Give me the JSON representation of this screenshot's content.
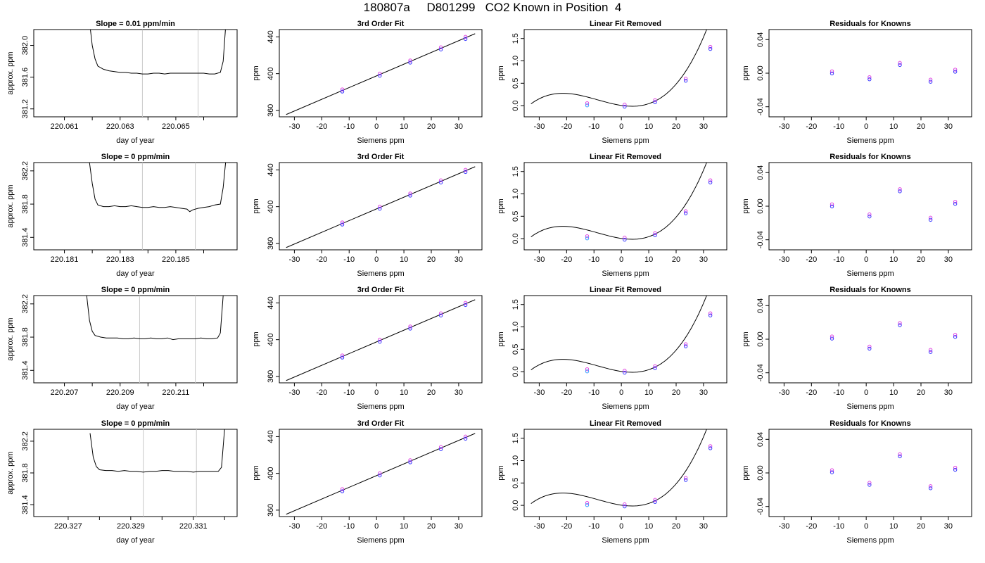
{
  "main_title": "180807a     D801299   CO2 Known in Position  4",
  "chart_data": [
    {
      "type": "line",
      "panel": "timeseries",
      "row": 0,
      "title": "Slope =  0.01  ppm/min",
      "xlabel": "day of year",
      "ylabel": "approx. ppm",
      "xlim": [
        220.0599,
        220.0672
      ],
      "ylim": [
        381.1,
        382.2
      ],
      "xticks": [
        "220.061",
        "220.063",
        "220.065"
      ],
      "minor_xticks": [
        220.062,
        220.064,
        220.066
      ],
      "yticks": [
        "381.2",
        "381.6",
        "382.0"
      ],
      "vlines": [
        220.0638,
        220.0658
      ],
      "x": [
        220.0619,
        220.062,
        220.0621,
        220.0622,
        220.0624,
        220.0626,
        220.0628,
        220.063,
        220.0632,
        220.0634,
        220.0636,
        220.0638,
        220.064,
        220.0642,
        220.0644,
        220.0646,
        220.0648,
        220.065,
        220.0652,
        220.0654,
        220.0656,
        220.0658,
        220.066,
        220.0662,
        220.0664,
        220.0666,
        220.0667,
        220.0668
      ],
      "y": [
        382.3,
        382.0,
        381.83,
        381.74,
        381.7,
        381.68,
        381.67,
        381.66,
        381.66,
        381.65,
        381.65,
        381.64,
        381.64,
        381.65,
        381.65,
        381.64,
        381.65,
        381.65,
        381.65,
        381.65,
        381.65,
        381.65,
        381.65,
        381.64,
        381.64,
        381.66,
        381.8,
        382.3
      ]
    },
    {
      "type": "scatter",
      "panel": "fit",
      "row": 0,
      "title": "3rd Order Fit",
      "xlabel": "Siemens ppm",
      "ylabel": "ppm",
      "xlim": [
        -35.5,
        38.5
      ],
      "ylim": [
        353,
        448
      ],
      "xticks": [
        "-30",
        "-20",
        "-10",
        "0",
        "10",
        "20",
        "30"
      ],
      "yticks": [
        "360",
        "400",
        "440"
      ],
      "x": [
        -12.5,
        1.2,
        12.3,
        23.5,
        32.5
      ],
      "y": [
        381.7,
        398.9,
        413.2,
        427.5,
        438.9
      ],
      "fit_line": [
        [
          -33,
          355.5
        ],
        [
          36,
          443.5
        ]
      ]
    },
    {
      "type": "scatter",
      "panel": "removed",
      "row": 0,
      "title": "Linear Fit Removed",
      "xlabel": "Siemens ppm",
      "ylabel": "ppm",
      "xlim": [
        -35.5,
        38.5
      ],
      "ylim": [
        -0.25,
        1.7
      ],
      "xticks": [
        "-30",
        "-20",
        "-10",
        "0",
        "10",
        "20",
        "30"
      ],
      "yticks": [
        "0.0",
        "0.5",
        "1.0",
        "1.5"
      ],
      "x": [
        -12.5,
        1.2,
        12.3,
        23.5,
        32.5
      ],
      "y": [
        0.03,
        0.0,
        0.1,
        0.58,
        1.29
      ],
      "curve": {
        "a": 3.55e-05,
        "b": 0.00093,
        "c": -0.009,
        "d": 0.005,
        "x_from": -33,
        "x_to": 36
      }
    },
    {
      "type": "scatter",
      "panel": "residuals",
      "row": 0,
      "title": "Residuals for Knowns",
      "xlabel": "Siemens ppm",
      "ylabel": "ppm",
      "xlim": [
        -35.5,
        38.5
      ],
      "ylim": [
        -0.052,
        0.052
      ],
      "xticks": [
        "-30",
        "-20",
        "-10",
        "0",
        "10",
        "20",
        "30"
      ],
      "yticks": [
        "-0.04",
        "0.00",
        "0.04"
      ],
      "x": [
        -12.5,
        1.2,
        12.3,
        23.5,
        32.5
      ],
      "y": [
        0.001,
        -0.006,
        0.011,
        -0.009,
        0.003
      ]
    },
    {
      "type": "line",
      "panel": "timeseries",
      "row": 1,
      "title": "Slope =  0  ppm/min",
      "xlabel": "day of year",
      "ylabel": "approx. ppm",
      "xlim": [
        220.1799,
        220.1872
      ],
      "ylim": [
        381.25,
        382.3
      ],
      "xticks": [
        "220.181",
        "220.183",
        "220.185"
      ],
      "minor_xticks": [
        220.182,
        220.184,
        220.186
      ],
      "yticks": [
        "381.4",
        "381.8",
        "382.2"
      ],
      "vlines": [
        220.1838,
        220.1857
      ],
      "x": [
        220.1819,
        220.182,
        220.1821,
        220.1822,
        220.1824,
        220.1826,
        220.1828,
        220.183,
        220.1832,
        220.1834,
        220.1836,
        220.1838,
        220.184,
        220.1842,
        220.1844,
        220.1846,
        220.1848,
        220.185,
        220.1852,
        220.1854,
        220.1855,
        220.1856,
        220.1858,
        220.186,
        220.1862,
        220.1864,
        220.1866,
        220.1867,
        220.1868
      ],
      "y": [
        382.3,
        382.05,
        381.86,
        381.79,
        381.77,
        381.77,
        381.78,
        381.77,
        381.77,
        381.78,
        381.77,
        381.76,
        381.76,
        381.77,
        381.76,
        381.76,
        381.77,
        381.76,
        381.75,
        381.74,
        381.71,
        381.73,
        381.75,
        381.76,
        381.77,
        381.79,
        381.8,
        382.0,
        382.35
      ]
    },
    {
      "type": "scatter",
      "panel": "fit",
      "row": 1,
      "title": "3rd Order Fit",
      "xlabel": "Siemens ppm",
      "ylabel": "ppm",
      "xlim": [
        -35.5,
        38.5
      ],
      "ylim": [
        353,
        448
      ],
      "xticks": [
        "-30",
        "-20",
        "-10",
        "0",
        "10",
        "20",
        "30"
      ],
      "yticks": [
        "360",
        "400",
        "440"
      ],
      "x": [
        -12.5,
        1.2,
        12.3,
        23.5,
        32.5
      ],
      "y": [
        381.7,
        398.9,
        413.2,
        427.5,
        438.9
      ],
      "fit_line": [
        [
          -33,
          355.5
        ],
        [
          36,
          443.5
        ]
      ]
    },
    {
      "type": "scatter",
      "panel": "removed",
      "row": 1,
      "title": "Linear Fit Removed",
      "xlabel": "Siemens ppm",
      "ylabel": "ppm",
      "xlim": [
        -35.5,
        38.5
      ],
      "ylim": [
        -0.25,
        1.7
      ],
      "xticks": [
        "-30",
        "-20",
        "-10",
        "0",
        "10",
        "20",
        "30"
      ],
      "yticks": [
        "0.0",
        "0.5",
        "1.0",
        "1.5"
      ],
      "x": [
        -12.5,
        1.2,
        12.3,
        23.5,
        32.5
      ],
      "y": [
        0.03,
        0.0,
        0.1,
        0.59,
        1.28
      ],
      "curve": {
        "a": 3.55e-05,
        "b": 0.00093,
        "c": -0.009,
        "d": 0.005,
        "x_from": -33,
        "x_to": 36
      }
    },
    {
      "type": "scatter",
      "panel": "residuals",
      "row": 1,
      "title": "Residuals for Knowns",
      "xlabel": "Siemens ppm",
      "ylabel": "ppm",
      "xlim": [
        -35.5,
        38.5
      ],
      "ylim": [
        -0.052,
        0.052
      ],
      "xticks": [
        "-30",
        "-20",
        "-10",
        "0",
        "10",
        "20",
        "30"
      ],
      "yticks": [
        "-0.04",
        "0.00",
        "0.04"
      ],
      "x": [
        -12.5,
        1.2,
        12.3,
        23.5,
        32.5
      ],
      "y": [
        0.001,
        -0.011,
        0.019,
        -0.015,
        0.004
      ]
    },
    {
      "type": "line",
      "panel": "timeseries",
      "row": 2,
      "title": "Slope =  0  ppm/min",
      "xlabel": "day of year",
      "ylabel": "approx. ppm",
      "xlim": [
        220.2059,
        220.2132
      ],
      "ylim": [
        381.25,
        382.3
      ],
      "xticks": [
        "220.207",
        "220.209",
        "220.211"
      ],
      "minor_xticks": [
        220.208,
        220.21,
        220.212
      ],
      "yticks": [
        "381.4",
        "381.8",
        "382.2"
      ],
      "vlines": [
        220.2097,
        220.2117
      ],
      "x": [
        220.2078,
        220.2079,
        220.208,
        220.2081,
        220.2083,
        220.2085,
        220.2087,
        220.2089,
        220.2091,
        220.2093,
        220.2095,
        220.2097,
        220.2099,
        220.2101,
        220.2103,
        220.2105,
        220.2107,
        220.2109,
        220.2111,
        220.2113,
        220.2115,
        220.2117,
        220.2119,
        220.2121,
        220.2123,
        220.2125,
        220.2126,
        220.2127
      ],
      "y": [
        382.3,
        382.0,
        381.87,
        381.82,
        381.8,
        381.79,
        381.79,
        381.79,
        381.78,
        381.78,
        381.79,
        381.78,
        381.78,
        381.79,
        381.78,
        381.78,
        381.79,
        381.77,
        381.78,
        381.78,
        381.78,
        381.78,
        381.79,
        381.78,
        381.78,
        381.79,
        381.85,
        382.3
      ]
    },
    {
      "type": "scatter",
      "panel": "fit",
      "row": 2,
      "title": "3rd Order Fit",
      "xlabel": "Siemens ppm",
      "ylabel": "ppm",
      "xlim": [
        -35.5,
        38.5
      ],
      "ylim": [
        353,
        448
      ],
      "xticks": [
        "-30",
        "-20",
        "-10",
        "0",
        "10",
        "20",
        "30"
      ],
      "yticks": [
        "360",
        "400",
        "440"
      ],
      "x": [
        -12.5,
        1.2,
        12.3,
        23.5,
        32.5
      ],
      "y": [
        381.7,
        398.9,
        413.2,
        427.5,
        438.9
      ],
      "fit_line": [
        [
          -33,
          355.5
        ],
        [
          36,
          443.5
        ]
      ]
    },
    {
      "type": "scatter",
      "panel": "removed",
      "row": 2,
      "title": "Linear Fit Removed",
      "xlabel": "Siemens ppm",
      "ylabel": "ppm",
      "xlim": [
        -35.5,
        38.5
      ],
      "ylim": [
        -0.25,
        1.7
      ],
      "xticks": [
        "-30",
        "-20",
        "-10",
        "0",
        "10",
        "20",
        "30"
      ],
      "yticks": [
        "0.0",
        "0.5",
        "1.0",
        "1.5"
      ],
      "x": [
        -12.5,
        1.2,
        12.3,
        23.5,
        32.5
      ],
      "y": [
        0.03,
        0.0,
        0.1,
        0.59,
        1.28
      ],
      "curve": {
        "a": 3.55e-05,
        "b": 0.00093,
        "c": -0.009,
        "d": 0.005,
        "x_from": -33,
        "x_to": 36
      }
    },
    {
      "type": "scatter",
      "panel": "residuals",
      "row": 2,
      "title": "Residuals for Knowns",
      "xlabel": "Siemens ppm",
      "ylabel": "ppm",
      "xlim": [
        -35.5,
        38.5
      ],
      "ylim": [
        -0.052,
        0.052
      ],
      "xticks": [
        "-30",
        "-20",
        "-10",
        "0",
        "10",
        "20",
        "30"
      ],
      "yticks": [
        "-0.04",
        "0.00",
        "0.04"
      ],
      "x": [
        -12.5,
        1.2,
        12.3,
        23.5,
        32.5
      ],
      "y": [
        0.002,
        -0.01,
        0.018,
        -0.014,
        0.004
      ]
    },
    {
      "type": "line",
      "panel": "timeseries",
      "row": 3,
      "title": "Slope =  0  ppm/min",
      "xlabel": "day of year",
      "ylabel": "approx. ppm",
      "xlim": [
        220.3259,
        220.3324
      ],
      "ylim": [
        381.25,
        382.35
      ],
      "xticks": [
        "220.327",
        "220.329",
        "220.331"
      ],
      "minor_xticks": [
        220.328,
        220.33,
        220.332
      ],
      "yticks": [
        "381.4",
        "381.8",
        "382.2"
      ],
      "vlines": [
        220.3294,
        220.3311
      ],
      "x": [
        220.3277,
        220.3278,
        220.3279,
        220.328,
        220.3282,
        220.3284,
        220.3286,
        220.3288,
        220.329,
        220.3292,
        220.3294,
        220.3296,
        220.3298,
        220.33,
        220.3302,
        220.3304,
        220.3306,
        220.3308,
        220.331,
        220.3312,
        220.3314,
        220.3316,
        220.3318,
        220.3319,
        220.332
      ],
      "y": [
        382.3,
        382.0,
        381.88,
        381.84,
        381.83,
        381.83,
        381.82,
        381.83,
        381.82,
        381.82,
        381.81,
        381.82,
        381.82,
        381.83,
        381.83,
        381.82,
        381.82,
        381.82,
        381.81,
        381.82,
        381.82,
        381.82,
        381.82,
        381.87,
        382.35
      ]
    },
    {
      "type": "scatter",
      "panel": "fit",
      "row": 3,
      "title": "3rd Order Fit",
      "xlabel": "Siemens ppm",
      "ylabel": "ppm",
      "xlim": [
        -35.5,
        38.5
      ],
      "ylim": [
        353,
        448
      ],
      "xticks": [
        "-30",
        "-20",
        "-10",
        "0",
        "10",
        "20",
        "30"
      ],
      "yticks": [
        "360",
        "400",
        "440"
      ],
      "x": [
        -12.5,
        1.2,
        12.3,
        23.5,
        32.5
      ],
      "y": [
        381.7,
        398.9,
        413.2,
        427.5,
        438.9
      ],
      "fit_line": [
        [
          -33,
          355.5
        ],
        [
          36,
          443.5
        ]
      ]
    },
    {
      "type": "scatter",
      "panel": "removed",
      "row": 3,
      "title": "Linear Fit Removed",
      "xlabel": "Siemens ppm",
      "ylabel": "ppm",
      "xlim": [
        -35.5,
        38.5
      ],
      "ylim": [
        -0.25,
        1.7
      ],
      "xticks": [
        "-30",
        "-20",
        "-10",
        "0",
        "10",
        "20",
        "30"
      ],
      "yticks": [
        "0.0",
        "0.5",
        "1.0",
        "1.5"
      ],
      "x": [
        -12.5,
        1.2,
        12.3,
        23.5,
        32.5
      ],
      "y": [
        0.03,
        0.0,
        0.1,
        0.59,
        1.3
      ],
      "curve": {
        "a": 3.55e-05,
        "b": 0.00093,
        "c": -0.009,
        "d": 0.005,
        "x_from": -33,
        "x_to": 36
      }
    },
    {
      "type": "scatter",
      "panel": "residuals",
      "row": 3,
      "title": "Residuals for Knowns",
      "xlabel": "Siemens ppm",
      "ylabel": "ppm",
      "xlim": [
        -35.5,
        38.5
      ],
      "ylim": [
        -0.052,
        0.052
      ],
      "xticks": [
        "-30",
        "-20",
        "-10",
        "0",
        "10",
        "20",
        "30"
      ],
      "yticks": [
        "-0.04",
        "0.00",
        "0.04"
      ],
      "x": [
        -12.5,
        1.2,
        12.3,
        23.5,
        32.5
      ],
      "y": [
        0.002,
        -0.013,
        0.021,
        -0.017,
        0.005
      ]
    }
  ]
}
